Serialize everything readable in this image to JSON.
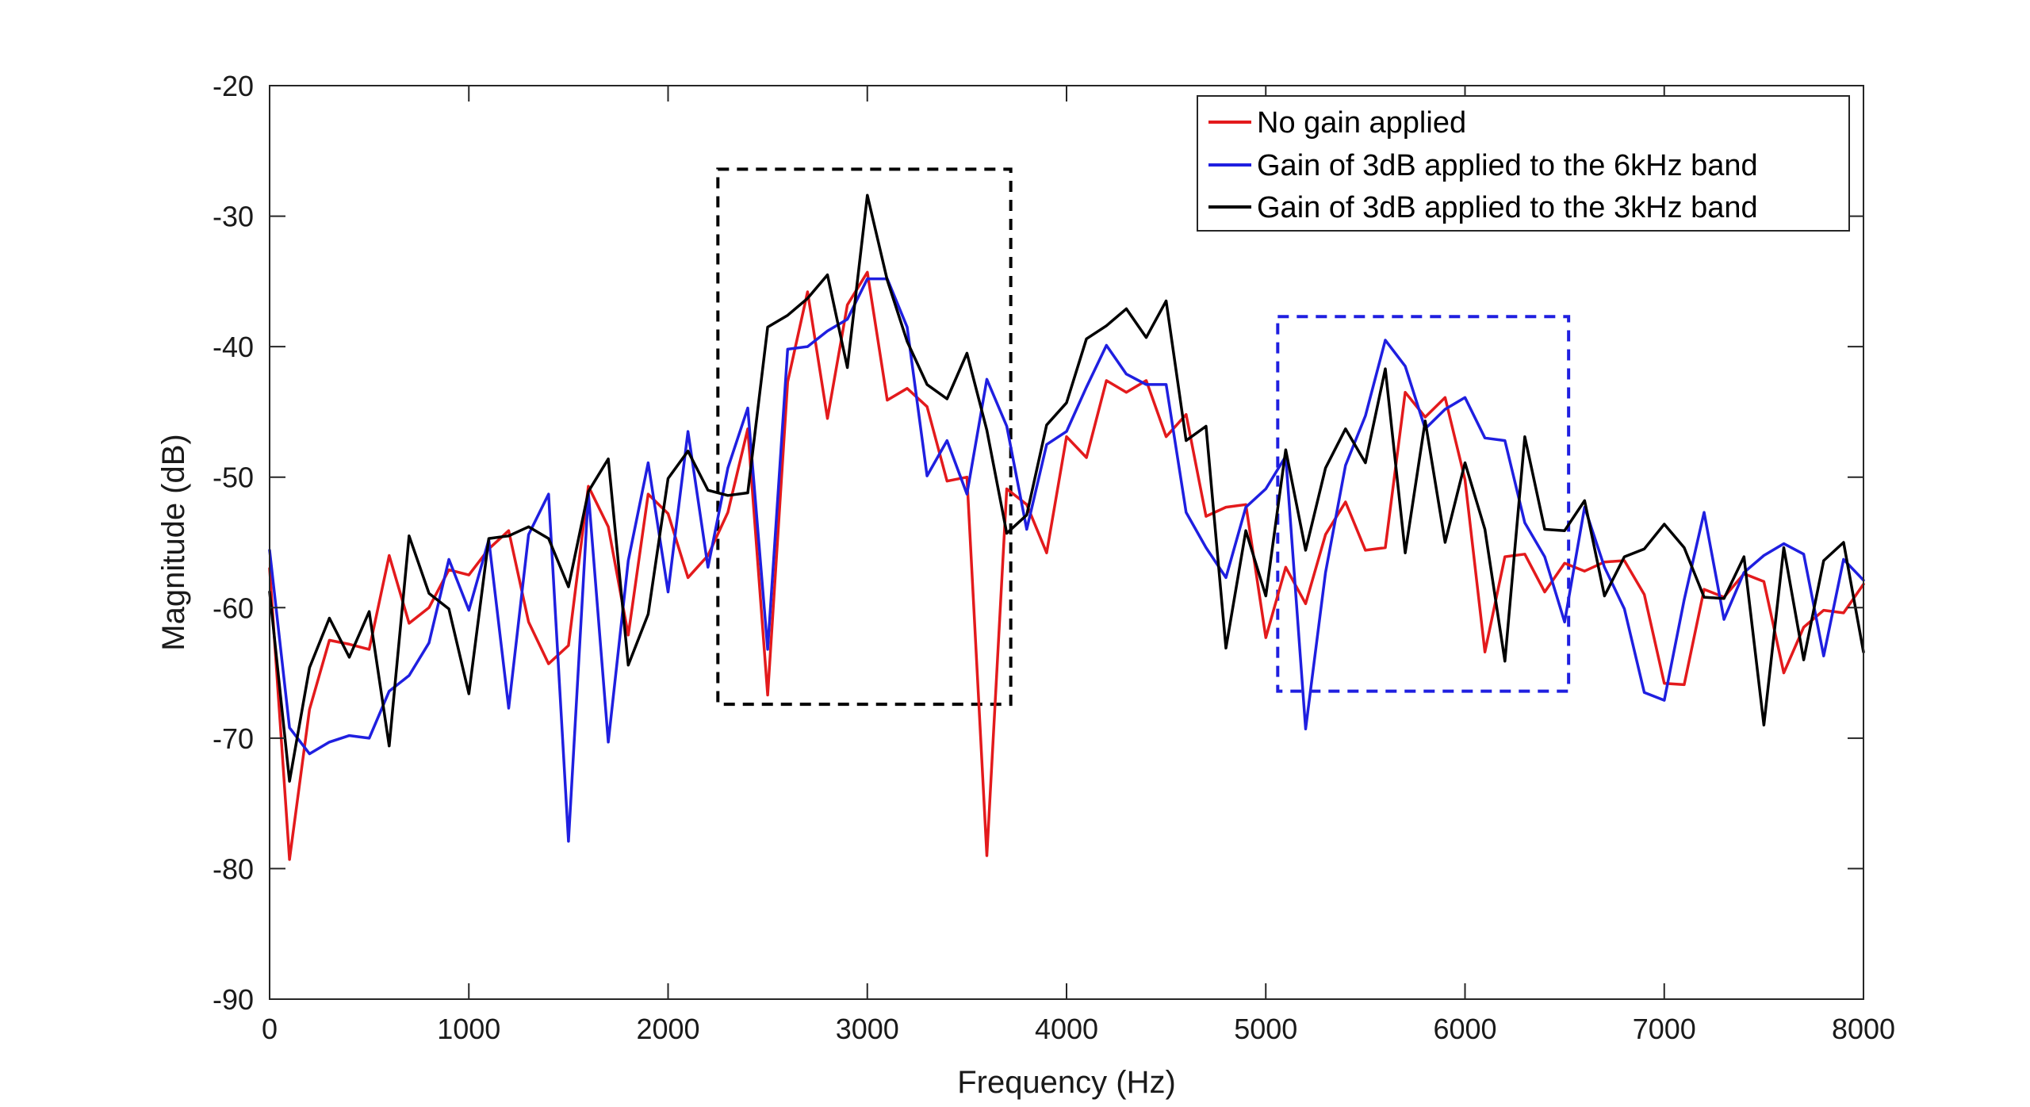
{
  "chart_data": {
    "type": "line",
    "title": "",
    "xlabel": "Frequency (Hz)",
    "ylabel": "Magnitude (dB)",
    "xlim": [
      0,
      8000
    ],
    "ylim": [
      -90,
      -20
    ],
    "xticks": [
      0,
      1000,
      2000,
      3000,
      4000,
      5000,
      6000,
      7000,
      8000
    ],
    "yticks": [
      -20,
      -30,
      -40,
      -50,
      -60,
      -70,
      -80,
      -90
    ],
    "xtick_labels": [
      "0",
      "1000",
      "2000",
      "3000",
      "4000",
      "5000",
      "6000",
      "7000",
      "8000"
    ],
    "ytick_labels": [
      "-20",
      "-30",
      "-40",
      "-50",
      "-60",
      "-70",
      "-80",
      "-90"
    ],
    "grid": false,
    "legend_position": "top-right",
    "x": [
      0,
      100,
      200,
      300,
      400,
      500,
      600,
      700,
      800,
      900,
      1000,
      1100,
      1200,
      1300,
      1400,
      1500,
      1600,
      1700,
      1800,
      1900,
      2000,
      2100,
      2200,
      2300,
      2400,
      2500,
      2600,
      2700,
      2800,
      2900,
      3000,
      3100,
      3200,
      3300,
      3400,
      3500,
      3600,
      3700,
      3800,
      3900,
      4000,
      4100,
      4200,
      4300,
      4400,
      4500,
      4600,
      4700,
      4800,
      4900,
      5000,
      5100,
      5200,
      5300,
      5400,
      5500,
      5600,
      5700,
      5800,
      5900,
      6000,
      6100,
      6200,
      6300,
      6400,
      6500,
      6600,
      6700,
      6800,
      6900,
      7000,
      7100,
      7200,
      7300,
      7400,
      7500,
      7600,
      7700,
      7800,
      7900,
      8000
    ],
    "series": [
      {
        "name": "No gain applied",
        "color": "#e31a1c",
        "values": [
          -57,
          -79.3,
          -67.8,
          -62.5,
          -62.8,
          -63.2,
          -56,
          -61.2,
          -60,
          -57.1,
          -57.5,
          -55.5,
          -54.1,
          -61.1,
          -64.3,
          -62.9,
          -50.7,
          -53.8,
          -62.1,
          -51.3,
          -52.8,
          -57.7,
          -56,
          -52.7,
          -46.3,
          -66.7,
          -42.7,
          -35.8,
          -45.5,
          -36.8,
          -34.3,
          -44.1,
          -43.2,
          -44.6,
          -50.3,
          -50,
          -79,
          -50.9,
          -52.1,
          -55.8,
          -46.9,
          -48.5,
          -42.6,
          -43.5,
          -42.6,
          -46.9,
          -45.2,
          -53,
          -52.3,
          -52.1,
          -62.3,
          -56.9,
          -59.7,
          -54.4,
          -51.9,
          -55.6,
          -55.4,
          -43.5,
          -45.4,
          -43.9,
          -50.2,
          -63.4,
          -56.1,
          -55.9,
          -58.8,
          -56.6,
          -57.2,
          -56.5,
          -56.4,
          -59,
          -65.8,
          -65.9,
          -58.6,
          -59.2,
          -57.4,
          -58,
          -65,
          -61.5,
          -60.2,
          -60.4,
          -58.2
        ]
      },
      {
        "name": "Gain of 3dB applied to the 6kHz band",
        "color": "#1f1fe0",
        "values": [
          -55.6,
          -69.2,
          -71.2,
          -70.3,
          -69.8,
          -70,
          -66.4,
          -65.2,
          -62.7,
          -56.3,
          -60.2,
          -54.8,
          -67.7,
          -54.4,
          -51.3,
          -77.9,
          -51.2,
          -70.3,
          -56.4,
          -48.9,
          -58.8,
          -46.5,
          -56.9,
          -49.3,
          -44.7,
          -63.2,
          -40.2,
          -40,
          -38.8,
          -37.9,
          -34.8,
          -34.8,
          -38.5,
          -49.9,
          -47.2,
          -51.3,
          -42.5,
          -46.1,
          -54,
          -47.5,
          -46.5,
          -43.1,
          -39.9,
          -42.1,
          -42.9,
          -42.9,
          -52.7,
          -55.4,
          -57.7,
          -52.3,
          -50.9,
          -48.4,
          -69.3,
          -57.3,
          -49.1,
          -45.3,
          -39.5,
          -41.5,
          -46.3,
          -44.8,
          -43.9,
          -47,
          -47.2,
          -53.5,
          -56.1,
          -61.1,
          -52.3,
          -56.9,
          -60.1,
          -66.5,
          -67.1,
          -59.4,
          -52.7,
          -60.9,
          -57.3,
          -56,
          -55.1,
          -55.9,
          -63.7,
          -56.3,
          -57.9
        ]
      },
      {
        "name": "Gain of 3dB applied to the 3kHz band",
        "color": "#000000",
        "values": [
          -58.8,
          -73.3,
          -64.6,
          -60.8,
          -63.8,
          -60.3,
          -70.6,
          -54.5,
          -58.9,
          -60.1,
          -66.6,
          -54.7,
          -54.5,
          -53.8,
          -54.7,
          -58.4,
          -51.1,
          -48.6,
          -64.4,
          -60.5,
          -50.1,
          -48,
          -51,
          -51.4,
          -51.2,
          -38.5,
          -37.6,
          -36.3,
          -34.5,
          -41.6,
          -28.4,
          -34.9,
          -39.6,
          -42.9,
          -44,
          -40.5,
          -46.4,
          -54.3,
          -52.9,
          -46,
          -44.3,
          -39.4,
          -38.4,
          -37.1,
          -39.3,
          -36.5,
          -47.2,
          -46.1,
          -63.1,
          -54.1,
          -59.1,
          -47.9,
          -55.6,
          -49.3,
          -46.3,
          -48.9,
          -41.7,
          -55.8,
          -45.7,
          -55,
          -48.9,
          -54,
          -64.1,
          -46.9,
          -54,
          -54.1,
          -51.8,
          -59.1,
          -56.1,
          -55.5,
          -53.6,
          -55.4,
          -59.2,
          -59.3,
          -56.1,
          -69,
          -55.4,
          -64,
          -56.4,
          -55,
          -63.4
        ]
      }
    ],
    "annotations": [
      {
        "shape": "dashed-rectangle",
        "color": "#000000",
        "x_range": [
          2250,
          3720
        ],
        "y_range": [
          -67.4,
          -26.4
        ]
      },
      {
        "shape": "dashed-rectangle",
        "color": "#1f1fe0",
        "x_range": [
          5060,
          6520
        ],
        "y_range": [
          -66.4,
          -37.7
        ]
      }
    ]
  }
}
